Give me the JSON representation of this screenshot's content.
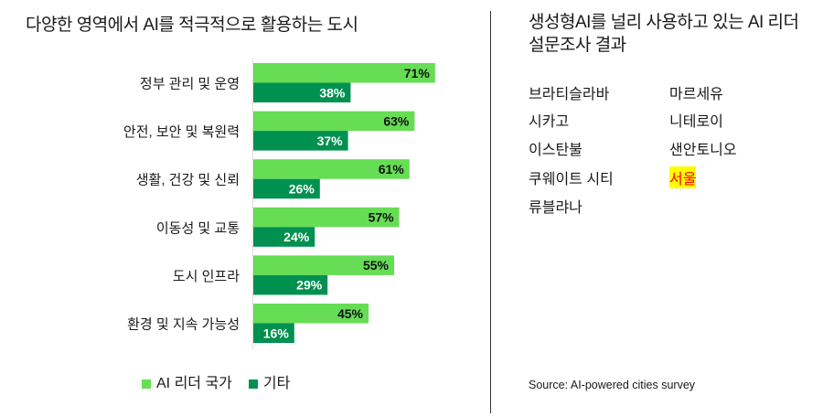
{
  "chart_data": {
    "type": "bar",
    "orientation": "horizontal",
    "title": "다양한 영역에서 AI를 적극적으로 활용하는 도시",
    "categories": [
      "정부 관리 및 운영",
      "안전, 보안 및 복원력",
      "생활, 건강 및 신뢰",
      "이동성 및 교통",
      "도시 인프라",
      "환경 및 지속 가능성"
    ],
    "series": [
      {
        "name": "AI 리더 국가",
        "values": [
          71,
          63,
          61,
          57,
          55,
          45
        ],
        "color": "#66dd55"
      },
      {
        "name": "기타",
        "values": [
          38,
          37,
          26,
          24,
          29,
          16
        ],
        "color": "#009150"
      }
    ],
    "value_format": "percent",
    "legend_position": "bottom-left",
    "grid": false
  },
  "panel": {
    "title_line1": "생성형AI를 널리 사용하고 있는 AI 리더",
    "title_line2": "설문조사 결과",
    "cities_left": [
      "브라티슬라바",
      "시카고",
      "이스탄불",
      "쿠웨이트 시티",
      "류블랴나"
    ],
    "cities_right": [
      "마르세유",
      "니테로이",
      "샌안토니오",
      "서울"
    ],
    "highlight_city_color": "#ff0000",
    "highlight_bg": "#ffff00",
    "source": "Source: AI-powered cities survey"
  }
}
